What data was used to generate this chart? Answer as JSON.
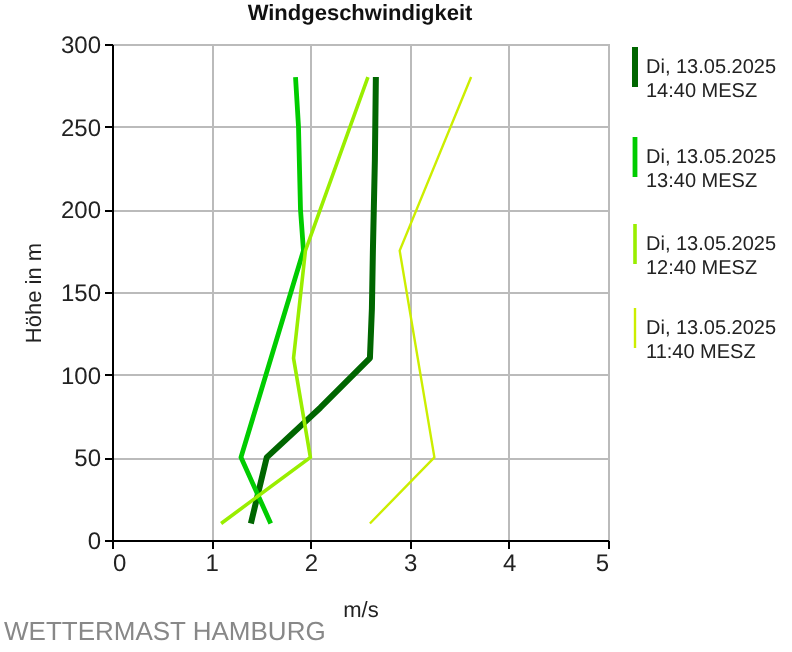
{
  "chart_data": {
    "type": "line",
    "title": "Windgeschwindigkeit",
    "xlabel": "m/s",
    "ylabel": "Höhe in m",
    "annotations": [
      "WETTERMAST HAMBURG"
    ],
    "xlim": [
      0,
      5
    ],
    "xticks": [
      0,
      1,
      2,
      3,
      4,
      5
    ],
    "ylim": [
      0,
      300
    ],
    "yticks": [
      0,
      50,
      100,
      150,
      200,
      250,
      300
    ],
    "grid": true,
    "legend": "right",
    "marker": "none",
    "series": [
      {
        "name": "Di, 13.05.2025 14:40 MESZ",
        "color": "#006600",
        "x": [
          1.4,
          1.56,
          2.1,
          2.6,
          2.62,
          2.63,
          2.65,
          2.66
        ],
        "values": [
          10,
          50,
          80,
          110,
          140,
          175,
          230,
          280
        ]
      },
      {
        "name": "Di, 13.05.2025 13:40 MESZ",
        "color": "#00cc00",
        "x": [
          1.6,
          1.3,
          1.93,
          1.9,
          1.88,
          1.85
        ],
        "values": [
          10,
          50,
          175,
          200,
          250,
          280
        ]
      },
      {
        "name": "Di, 13.05.2025 12:40 MESZ",
        "color": "#99ee00",
        "x": [
          1.1,
          2.0,
          1.83,
          1.95,
          2.58
        ],
        "values": [
          10,
          50,
          110,
          175,
          280
        ]
      },
      {
        "name": "Di, 13.05.2025 11:40 MESZ",
        "color": "#ccee00",
        "x": [
          2.6,
          3.25,
          2.9,
          3.62
        ],
        "values": [
          10,
          50,
          175,
          280
        ]
      }
    ]
  }
}
